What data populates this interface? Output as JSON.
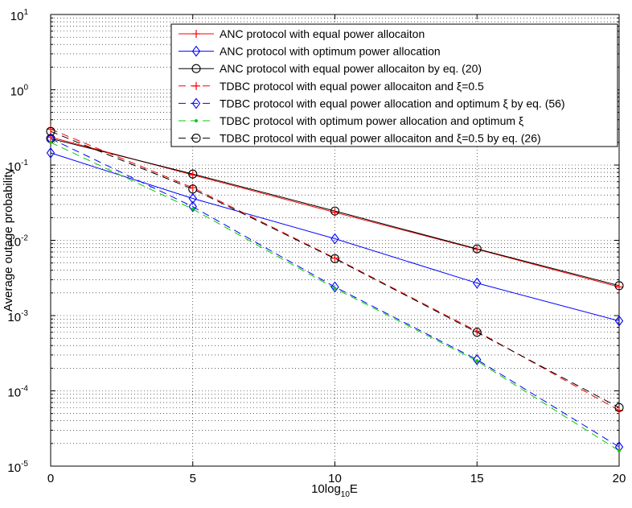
{
  "chart_data": {
    "type": "line",
    "title": "",
    "xlabel": "10log",
    "xlabel_sub": "10",
    "xlabel_tail": "E",
    "ylabel": "Average outage probability",
    "xlim": [
      0,
      20
    ],
    "ylim_log10": [
      -5,
      1
    ],
    "x_ticks": [
      0,
      5,
      10,
      15,
      20
    ],
    "x_tick_labels": [
      "0",
      "5",
      "10",
      "15",
      "20"
    ],
    "y_tick_exponents": [
      1,
      0,
      -1,
      -2,
      -3,
      -4,
      -5
    ],
    "y_tick_base": "10",
    "y_tick_exp_labels": [
      "1",
      "0",
      "-1",
      "-2",
      "-3",
      "-4",
      "-5"
    ],
    "grid": true,
    "legend_position": "top-right",
    "x": [
      0,
      5,
      10,
      15,
      20
    ],
    "series": [
      {
        "name": "ANC protocol with equal power allocaiton",
        "color": "#ff0000",
        "line": "solid",
        "marker": "plus",
        "values": [
          0.235,
          0.074,
          0.0235,
          0.0076,
          0.0024
        ]
      },
      {
        "name": "ANC protocol with optimum power allocation",
        "color": "#0000ff",
        "line": "solid",
        "marker": "diamond",
        "values": [
          0.145,
          0.036,
          0.0105,
          0.0027,
          0.00085
        ]
      },
      {
        "name": "ANC protocol with equal power allocaiton by eq. (20)",
        "color": "#000000",
        "line": "solid",
        "marker": "circle",
        "values": [
          0.225,
          0.076,
          0.0245,
          0.0077,
          0.0025
        ]
      },
      {
        "name": "TDBC protocol with equal power allocaiton and ξ=0.5",
        "color": "#ff0000",
        "line": "dashed",
        "marker": "plus",
        "values": [
          0.3,
          0.05,
          0.0058,
          0.00062,
          5.5e-05
        ]
      },
      {
        "name": "TDBC protocol with equal power allocation and optimum ξ by eq. (56)",
        "color": "#0000ff",
        "line": "dashed",
        "marker": "diamond",
        "values": [
          0.225,
          0.028,
          0.0024,
          0.00026,
          1.8e-05
        ]
      },
      {
        "name": "TDBC protocol with optimum power allocation and optimum ξ",
        "color": "#00cc00",
        "line": "dashed",
        "marker": "dot",
        "values": [
          0.2,
          0.026,
          0.0023,
          0.00025,
          1.6e-05
        ]
      },
      {
        "name": "TDBC protocol with equal power allocaiton and ξ=0.5 by eq. (26)",
        "color": "#000000",
        "line": "dashed",
        "marker": "circle",
        "values": [
          0.28,
          0.048,
          0.0057,
          0.0006,
          6e-05
        ]
      }
    ]
  }
}
